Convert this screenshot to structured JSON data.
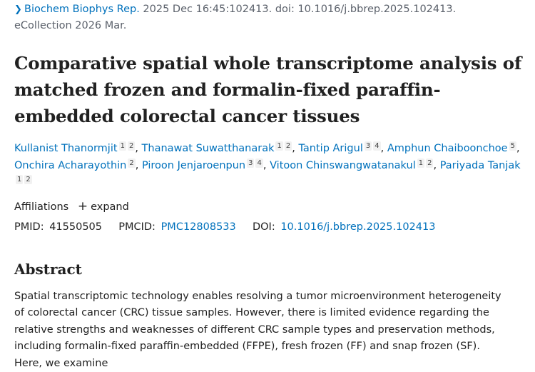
{
  "citation": {
    "chevron_icon": "chevron-right-icon",
    "journal": "Biochem Biophys Rep.",
    "details_line1": " 2025 Dec 16:45:102413. doi: 10.1016/j.bbrep.2025.102413.",
    "details_line2": "eCollection 2026 Mar."
  },
  "title": "Comparative spatial whole transcriptome analysis of matched frozen and formalin-fixed paraffin-embedded colorectal cancer tissues",
  "authors": [
    {
      "name": "Kullanist Thanormjit",
      "affs": [
        "1",
        "2"
      ]
    },
    {
      "name": "Thanawat Suwatthanarak",
      "affs": [
        "1",
        "2"
      ]
    },
    {
      "name": "Tantip Arigul",
      "affs": [
        "3",
        "4"
      ]
    },
    {
      "name": "Amphun Chaiboonchoe",
      "affs": [
        "5"
      ]
    },
    {
      "name": "Onchira Acharayothin",
      "affs": [
        "2"
      ]
    },
    {
      "name": "Piroon Jenjaroenpun",
      "affs": [
        "3",
        "4"
      ]
    },
    {
      "name": "Vitoon Chinswangwatanakul",
      "affs": [
        "1",
        "2"
      ]
    },
    {
      "name": "Pariyada Tanjak",
      "affs": [
        "1",
        "2"
      ]
    }
  ],
  "affiliations": {
    "label": "Affiliations",
    "expand_label": "expand",
    "expand_icon": "plus-icon"
  },
  "identifiers": {
    "pmid_label": "PMID:",
    "pmid": "41550505",
    "pmcid_label": "PMCID:",
    "pmcid": "PMC12808533",
    "doi_label": "DOI:",
    "doi": "10.1016/j.bbrep.2025.102413"
  },
  "abstract": {
    "heading": "Abstract",
    "text": "Spatial transcriptomic technology enables resolving a tumor microenvironment heterogeneity of colorectal cancer (CRC) tissue samples. However, there is limited evidence regarding the relative strengths and weaknesses of different CRC sample types and preservation methods, including formalin-fixed paraffin-embedded (FFPE), fresh frozen (FF) and snap frozen (SF). Here, we examine"
  }
}
